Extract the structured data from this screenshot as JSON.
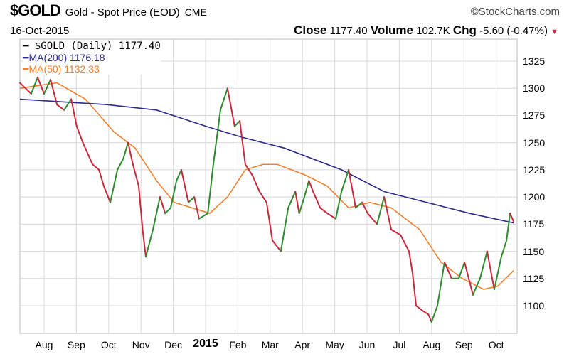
{
  "header": {
    "ticker": "$GOLD",
    "name": "Gold - Spot Price (EOD)",
    "exchange": "CME",
    "copyright": "©StockCharts.com",
    "date": "16-Oct-2015",
    "close_label": "Close",
    "close": "1177.40",
    "volume_label": "Volume",
    "volume": "102.7K",
    "chg_label": "Chg",
    "chg": "-5.60 (-0.47%)",
    "chg_icon": "down-triangle"
  },
  "legend": {
    "price": "$GOLD (Daily) 1177.40",
    "ma200": "MA(200) 1176.18",
    "ma50": "MA(50) 1132.33"
  },
  "colors": {
    "up": "#2e8b2e",
    "down": "#c8283c",
    "ma200": "#2a2a8a",
    "ma50": "#f08030",
    "grid": "#d8d8d8"
  },
  "chart_data": {
    "type": "line",
    "title": "$GOLD Gold - Spot Price (EOD)",
    "x_unit": "months since Aug 2014",
    "xticks": [
      "Aug",
      "Sep",
      "Oct",
      "Nov",
      "Dec",
      "2015",
      "Feb",
      "Mar",
      "Apr",
      "May",
      "Jun",
      "Jul",
      "Aug",
      "Sep",
      "Oct"
    ],
    "yticks": [
      1100,
      1125,
      1150,
      1175,
      1200,
      1225,
      1250,
      1275,
      1300,
      1325
    ],
    "ylim": [
      1080,
      1345
    ],
    "xlim": [
      -0.75,
      14.6
    ],
    "grid": true,
    "legend_position": "top-left",
    "series": [
      {
        "name": "$GOLD (Daily)",
        "points": [
          [
            -0.75,
            1305
          ],
          [
            -0.4,
            1295
          ],
          [
            -0.2,
            1310
          ],
          [
            0,
            1295
          ],
          [
            0.2,
            1308
          ],
          [
            0.4,
            1285
          ],
          [
            0.62,
            1280
          ],
          [
            0.84,
            1290
          ],
          [
            1.01,
            1265
          ],
          [
            1.2,
            1250
          ],
          [
            1.5,
            1230
          ],
          [
            1.7,
            1225
          ],
          [
            1.85,
            1210
          ],
          [
            2.05,
            1195
          ],
          [
            2.27,
            1225
          ],
          [
            2.45,
            1235
          ],
          [
            2.6,
            1250
          ],
          [
            2.75,
            1230
          ],
          [
            2.93,
            1210
          ],
          [
            3.05,
            1170
          ],
          [
            3.15,
            1145
          ],
          [
            3.37,
            1170
          ],
          [
            3.59,
            1200
          ],
          [
            3.75,
            1185
          ],
          [
            3.92,
            1190
          ],
          [
            4.1,
            1215
          ],
          [
            4.25,
            1225
          ],
          [
            4.47,
            1195
          ],
          [
            4.65,
            1200
          ],
          [
            4.8,
            1180
          ],
          [
            5.07,
            1185
          ],
          [
            5.24,
            1230
          ],
          [
            5.46,
            1280
          ],
          [
            5.68,
            1300
          ],
          [
            5.9,
            1265
          ],
          [
            6.06,
            1270
          ],
          [
            6.23,
            1230
          ],
          [
            6.45,
            1220
          ],
          [
            6.67,
            1205
          ],
          [
            6.89,
            1195
          ],
          [
            7.07,
            1160
          ],
          [
            7.33,
            1150
          ],
          [
            7.56,
            1190
          ],
          [
            7.78,
            1205
          ],
          [
            7.9,
            1185
          ],
          [
            8.06,
            1200
          ],
          [
            8.2,
            1215
          ],
          [
            8.33,
            1205
          ],
          [
            8.55,
            1190
          ],
          [
            8.77,
            1185
          ],
          [
            9.03,
            1180
          ],
          [
            9.21,
            1205
          ],
          [
            9.43,
            1225
          ],
          [
            9.65,
            1190
          ],
          [
            9.85,
            1195
          ],
          [
            10.02,
            1185
          ],
          [
            10.31,
            1175
          ],
          [
            10.53,
            1200
          ],
          [
            10.75,
            1170
          ],
          [
            11.04,
            1165
          ],
          [
            11.3,
            1150
          ],
          [
            11.41,
            1130
          ],
          [
            11.52,
            1100
          ],
          [
            11.74,
            1095
          ],
          [
            11.9,
            1092
          ],
          [
            12.0,
            1085
          ],
          [
            12.18,
            1100
          ],
          [
            12.4,
            1140
          ],
          [
            12.62,
            1125
          ],
          [
            12.84,
            1125
          ],
          [
            13.02,
            1140
          ],
          [
            13.28,
            1110
          ],
          [
            13.5,
            1125
          ],
          [
            13.72,
            1150
          ],
          [
            13.94,
            1115
          ],
          [
            14.16,
            1145
          ],
          [
            14.32,
            1160
          ],
          [
            14.43,
            1185
          ],
          [
            14.54,
            1177.4
          ]
        ]
      },
      {
        "name": "MA(200)",
        "points": [
          [
            -0.75,
            1290
          ],
          [
            1.94,
            1285
          ],
          [
            3.48,
            1280
          ],
          [
            5.02,
            1265
          ],
          [
            6.12,
            1255
          ],
          [
            7.44,
            1245
          ],
          [
            9.21,
            1225
          ],
          [
            10.53,
            1205
          ],
          [
            11.85,
            1195
          ],
          [
            13.17,
            1185
          ],
          [
            14.54,
            1176.18
          ]
        ]
      },
      {
        "name": "MA(50)",
        "points": [
          [
            -0.75,
            1300
          ],
          [
            0.4,
            1305
          ],
          [
            1.28,
            1290
          ],
          [
            2.16,
            1260
          ],
          [
            2.82,
            1245
          ],
          [
            3.48,
            1215
          ],
          [
            4.03,
            1195
          ],
          [
            4.58,
            1190
          ],
          [
            5.13,
            1185
          ],
          [
            5.68,
            1200
          ],
          [
            6.23,
            1225
          ],
          [
            6.78,
            1230
          ],
          [
            7.22,
            1230
          ],
          [
            8.1,
            1220
          ],
          [
            8.77,
            1210
          ],
          [
            9.43,
            1190
          ],
          [
            10.09,
            1195
          ],
          [
            10.75,
            1190
          ],
          [
            11.63,
            1170
          ],
          [
            12.29,
            1140
          ],
          [
            12.95,
            1125
          ],
          [
            13.61,
            1115
          ],
          [
            14.05,
            1118
          ],
          [
            14.54,
            1132.33
          ]
        ]
      }
    ]
  }
}
